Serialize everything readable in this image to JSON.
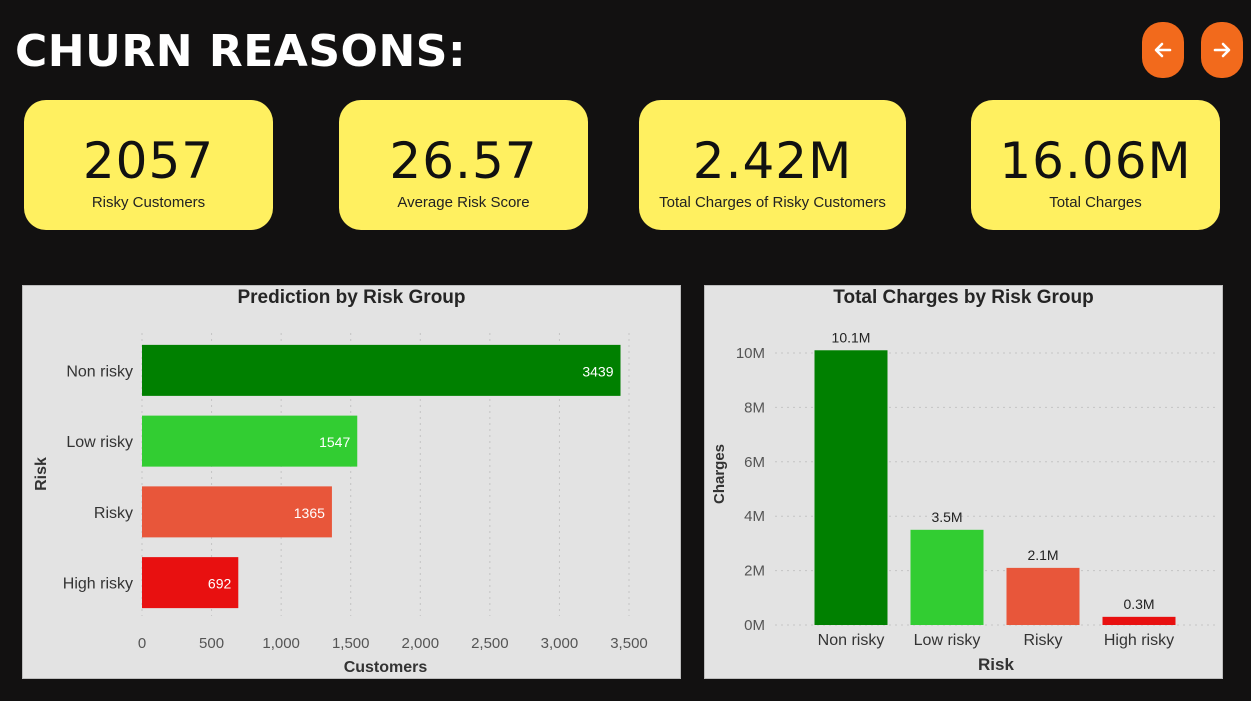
{
  "header": {
    "title": "CHURN REASONS:",
    "prev_icon": "arrow-left-icon",
    "next_icon": "arrow-right-icon",
    "accent": "#f26a1c"
  },
  "kpis": [
    {
      "value": "2057",
      "label": "Risky Customers"
    },
    {
      "value": "26.57",
      "label": "Average Risk Score"
    },
    {
      "value": "2.42M",
      "label": "Total Charges of Risky Customers"
    },
    {
      "value": "16.06M",
      "label": "Total Charges"
    }
  ],
  "chart_data": [
    {
      "type": "bar",
      "orientation": "horizontal",
      "title": "Prediction by Risk Group",
      "xlabel": "Customers",
      "ylabel": "Risk",
      "categories": [
        "Non risky",
        "Low risky",
        "Risky",
        "High risky"
      ],
      "values": [
        3439,
        1547,
        1365,
        692
      ],
      "data_labels": [
        "3439",
        "1547",
        "1365",
        "692"
      ],
      "colors": [
        "#008000",
        "#32cd32",
        "#e8563a",
        "#e81010"
      ],
      "xlim": [
        0,
        3500
      ],
      "xticks": [
        0,
        500,
        1000,
        1500,
        2000,
        2500,
        3000,
        3500
      ],
      "xtick_labels": [
        "0",
        "500",
        "1,000",
        "1,500",
        "2,000",
        "2,500",
        "3,000",
        "3,500"
      ],
      "grid": true,
      "legend": "none"
    },
    {
      "type": "bar",
      "orientation": "vertical",
      "title": "Total Charges by Risk Group",
      "xlabel": "Risk",
      "ylabel": "Charges",
      "categories": [
        "Non risky",
        "Low risky",
        "Risky",
        "High risky"
      ],
      "values": [
        10.1,
        3.5,
        2.1,
        0.3
      ],
      "data_labels": [
        "10.1M",
        "3.5M",
        "2.1M",
        "0.3M"
      ],
      "colors": [
        "#008000",
        "#32cd32",
        "#e8563a",
        "#e81010"
      ],
      "ylim": [
        0,
        11
      ],
      "yticks": [
        0,
        2,
        4,
        6,
        8,
        10
      ],
      "ytick_labels": [
        "0M",
        "2M",
        "4M",
        "6M",
        "8M",
        "10M"
      ],
      "grid": true,
      "legend": "none"
    }
  ]
}
